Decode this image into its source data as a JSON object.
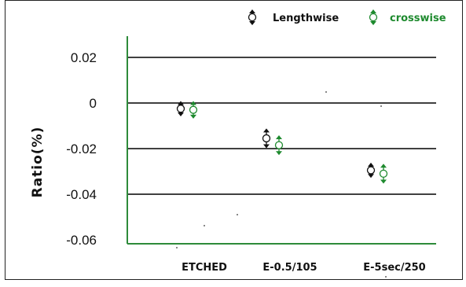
{
  "chart_data": {
    "type": "scatter",
    "title": "",
    "xlabel": "",
    "ylabel": "Ratio(%)",
    "categories": [
      "ETCHED",
      "E-0.5/105",
      "E-5sec/250"
    ],
    "ylim": [
      -0.06,
      0.03
    ],
    "yticks": [
      0.02,
      0,
      -0.02,
      -0.04,
      -0.06
    ],
    "ytick_labels": [
      "0.02",
      "0",
      "-0.02",
      "-0.04",
      "-0.06"
    ],
    "grid": true,
    "legend_position": "top-right",
    "series": [
      {
        "name": "Lengthwise",
        "color": "#111111",
        "values": [
          -0.0025,
          -0.0155,
          -0.0295
        ],
        "error": [
          0.003,
          0.004,
          0.003
        ]
      },
      {
        "name": "crosswise",
        "color": "#1e8a2e",
        "values": [
          -0.003,
          -0.0185,
          -0.031
        ],
        "error": [
          0.0035,
          0.004,
          0.004
        ]
      }
    ]
  }
}
